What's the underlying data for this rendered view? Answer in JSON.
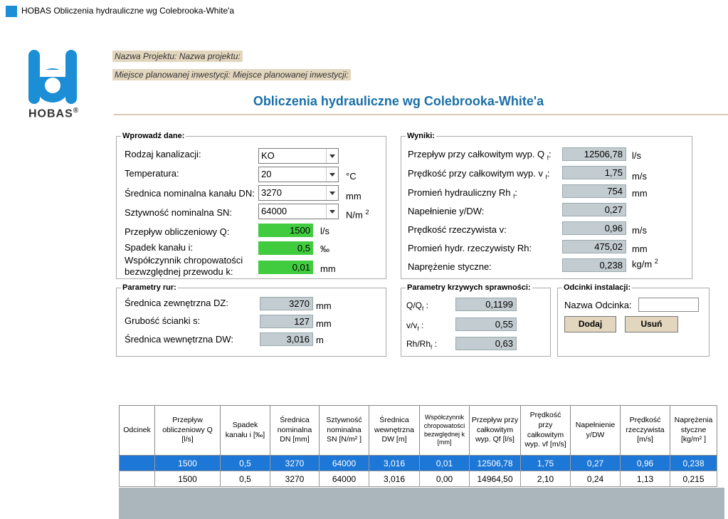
{
  "window": {
    "title": "HOBAS Obliczenia hydrauliczne wg Colebrooka-White'a"
  },
  "logo": {
    "text": "HOBAS",
    "mark": "®",
    "color": "#1b8ed6"
  },
  "project": {
    "name_label": "Nazwa Projektu:",
    "name_value": "Nazwa projektu:",
    "place_label": "Miejsce planowanej inwestycji:",
    "place_value": "Miejsce planowanej inwestycji:"
  },
  "main_title": "Obliczenia hydrauliczne wg Colebrooka-White'a",
  "input": {
    "legend": "Wprowadź dane:",
    "kanalizacja_label": "Rodzaj kanalizacji:",
    "kanalizacja_value": "KO",
    "temperatura_label": "Temperatura:",
    "temperatura_value": "20",
    "temperatura_unit": "°C",
    "dn_label": "Średnica nominalna kanału DN:",
    "dn_value": "3270",
    "dn_unit": "mm",
    "sn_label": "Sztywność nominalna SN:",
    "sn_value": "64000",
    "sn_unit": "N/m",
    "sn_unit_exp": "2",
    "q_label": "Przepływ obliczeniowy Q:",
    "q_value": "1500",
    "q_unit": "l/s",
    "i_label": "Spadek kanału i:",
    "i_value": "0,5",
    "i_unit": "‰",
    "k_label_1": "Współczynnik chropowatości",
    "k_label_2": "bezwzględnej przewodu k:",
    "k_value": "0,01",
    "k_unit": "mm"
  },
  "results": {
    "legend": "Wyniki:",
    "qf_label": "Przepływ przy całkowitym wyp. Q",
    "qf_sub": "f",
    "qf_value": "12506,78",
    "qf_unit": "l/s",
    "vf_label": "Prędkość przy całkowitym wyp. v",
    "vf_sub": "f",
    "vf_value": "1,75",
    "vf_unit": "m/s",
    "rhf_label": "Promień hydrauliczny Rh",
    "rhf_sub": "f",
    "rhf_value": "754",
    "rhf_unit": "mm",
    "fill_label": "Napełnienie y/DW:",
    "fill_value": "0,27",
    "v_label": "Prędkość rzeczywista v:",
    "v_value": "0,96",
    "v_unit": "m/s",
    "rh_label": "Promień hydr. rzeczywisty Rh:",
    "rh_value": "475,02",
    "rh_unit": "mm",
    "tau_label": "Naprężenie styczne:",
    "tau_value": "0,238",
    "tau_unit": "kg/m",
    "tau_unit_exp": "2"
  },
  "pipe": {
    "legend": "Parametry rur:",
    "dz_label": "Średnica zewnętrzna DZ:",
    "dz_value": "3270",
    "dz_unit": "mm",
    "s_label": "Grubość ścianki s:",
    "s_value": "127",
    "s_unit": "mm",
    "dw_label": "Średnica wewnętrzna DW:",
    "dw_value": "3,016",
    "dw_unit": "m"
  },
  "curves": {
    "legend": "Parametry krzywych sprawności:",
    "qqf_label": "Q/Q",
    "qqf_value": "0,1199",
    "vvf_label": "v/v",
    "vvf_value": "0,55",
    "rhrhf_label": "Rh/Rh",
    "rhrhf_value": "0,63",
    "sub_f": "f",
    "colon": ":"
  },
  "segments": {
    "legend": "Odcinki instalacji:",
    "name_label": "Nazwa Odcinka:",
    "name_value": "",
    "add_button": "Dodaj",
    "remove_button": "Usuń"
  },
  "table": {
    "headers": [
      "Odcinek",
      "Przepływ obliczeniowy Q [l/s]",
      "Spadek kanału i [‰]",
      "Średnica nominalna DN [mm]",
      "Sztywność nominalna SN [N/m² ]",
      "Średnica wewnętrzna DW [m]",
      "Współczynnik chropowatości bezwględnej k [mm]",
      "Przepływ przy całkowitym wyp. Qf [l/s]",
      "Prędkość przy całkowitym wyp. vf [m/s]",
      "Napełnienie y/DW",
      "Prędkość rzeczywista [m/s]",
      "Naprężenia styczne [kg/m² ]"
    ],
    "rows": [
      [
        "",
        "1500",
        "0,5",
        "3270",
        "64000",
        "3,016",
        "0,01",
        "12506,78",
        "1,75",
        "0,27",
        "0,96",
        "0,238"
      ],
      [
        "",
        "1500",
        "0,5",
        "3270",
        "64000",
        "3,016",
        "0,00",
        "14964,50",
        "2,10",
        "0,24",
        "1,13",
        "0,215"
      ]
    ]
  }
}
